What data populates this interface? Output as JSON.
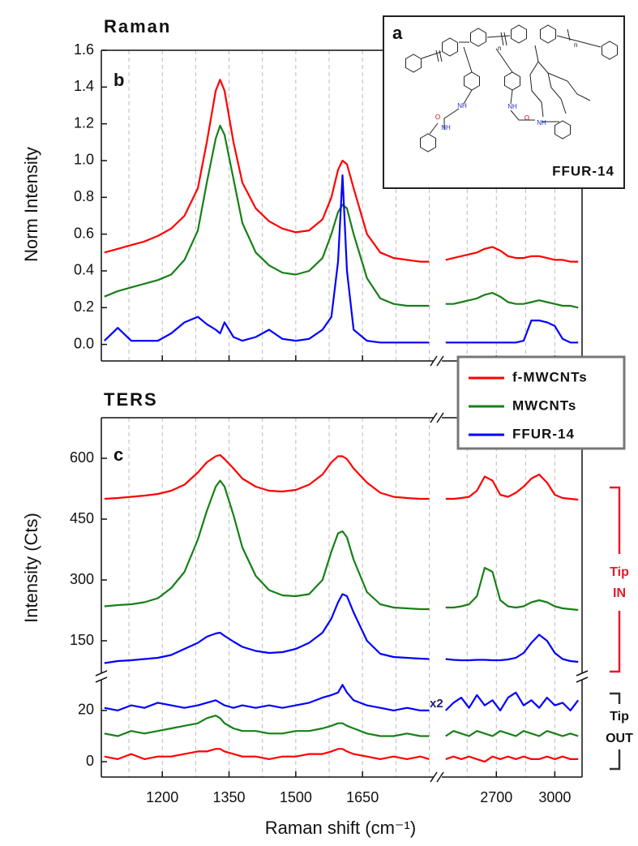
{
  "chart_data": [
    {
      "type": "line",
      "title": "Raman",
      "panel_label": "b",
      "ylabel": "Norm Intensity",
      "x_segments": [
        {
          "xlim": [
            1063,
            1810
          ],
          "xticks": [
            1200,
            1350,
            1500,
            1650
          ],
          "minor_xticks": [
            1125,
            1275,
            1425,
            1575,
            1725,
            1800
          ],
          "x": [
            1070,
            1100,
            1130,
            1160,
            1190,
            1220,
            1250,
            1280,
            1300,
            1320,
            1330,
            1340,
            1360,
            1380,
            1410,
            1440,
            1470,
            1500,
            1530,
            1560,
            1580,
            1595,
            1605,
            1615,
            1630,
            1660,
            1690,
            1720,
            1750,
            1780,
            1800
          ]
        },
        {
          "xlim": [
            2420,
            3140
          ],
          "xticks": [
            2700,
            3000
          ],
          "minor_xticks": [
            2550,
            2850
          ],
          "x": [
            2440,
            2480,
            2520,
            2560,
            2600,
            2640,
            2680,
            2720,
            2760,
            2800,
            2840,
            2880,
            2920,
            2960,
            3000,
            3040,
            3080,
            3120
          ]
        }
      ],
      "y_segments": [
        {
          "ylim": [
            -0.09,
            1.6
          ],
          "yticks": [
            {
              "value": 0,
              "label": "0.0"
            },
            0.2,
            0.4,
            0.6,
            0.8,
            {
              "value": 1,
              "label": "1.0"
            },
            1.2,
            1.4,
            1.6
          ]
        }
      ],
      "series": [
        {
          "color": "#ff0000",
          "values": [
            [
              0.5,
              0.52,
              0.54,
              0.56,
              0.59,
              0.63,
              0.7,
              0.85,
              1.1,
              1.38,
              1.44,
              1.38,
              1.1,
              0.88,
              0.74,
              0.67,
              0.63,
              0.61,
              0.62,
              0.68,
              0.8,
              0.95,
              1.0,
              0.98,
              0.85,
              0.6,
              0.5,
              0.47,
              0.46,
              0.45,
              0.45
            ],
            [
              0.46,
              0.47,
              0.48,
              0.49,
              0.5,
              0.52,
              0.53,
              0.51,
              0.48,
              0.47,
              0.47,
              0.48,
              0.48,
              0.47,
              0.46,
              0.46,
              0.45,
              0.45
            ]
          ]
        },
        {
          "color": "#178017",
          "values": [
            [
              0.26,
              0.29,
              0.31,
              0.33,
              0.35,
              0.38,
              0.46,
              0.62,
              0.88,
              1.12,
              1.19,
              1.14,
              0.9,
              0.66,
              0.5,
              0.43,
              0.39,
              0.38,
              0.4,
              0.47,
              0.6,
              0.72,
              0.76,
              0.74,
              0.6,
              0.36,
              0.25,
              0.22,
              0.21,
              0.21,
              0.21
            ],
            [
              0.22,
              0.22,
              0.23,
              0.24,
              0.25,
              0.27,
              0.28,
              0.26,
              0.23,
              0.22,
              0.22,
              0.23,
              0.24,
              0.23,
              0.22,
              0.21,
              0.21,
              0.2
            ]
          ]
        },
        {
          "color": "#0000ff",
          "values": [
            [
              0.02,
              0.09,
              0.02,
              0.02,
              0.02,
              0.06,
              0.12,
              0.15,
              0.11,
              0.08,
              0.06,
              0.12,
              0.04,
              0.02,
              0.04,
              0.08,
              0.03,
              0.02,
              0.03,
              0.08,
              0.15,
              0.45,
              0.92,
              0.4,
              0.08,
              0.02,
              0.01,
              0.01,
              0.01,
              0.01,
              0.01
            ],
            [
              0.01,
              0.01,
              0.01,
              0.01,
              0.01,
              0.01,
              0.01,
              0.01,
              0.01,
              0.01,
              0.02,
              0.13,
              0.13,
              0.12,
              0.1,
              0.03,
              0.01,
              0.01
            ]
          ]
        }
      ]
    },
    {
      "type": "line",
      "title": "TERS",
      "panel_label": "c",
      "ylabel": "Intensity (Cts)",
      "xlabel": "Raman shift (cm⁻¹)",
      "x_segments": [
        {
          "xlim": [
            1063,
            1810
          ],
          "xticks": [
            1200,
            1350,
            1500,
            1650
          ],
          "minor_xticks": [
            1125,
            1275,
            1425,
            1575,
            1725,
            1800
          ],
          "x": [
            1070,
            1100,
            1130,
            1160,
            1190,
            1220,
            1250,
            1280,
            1300,
            1320,
            1330,
            1340,
            1360,
            1380,
            1410,
            1440,
            1470,
            1500,
            1530,
            1560,
            1580,
            1595,
            1605,
            1615,
            1630,
            1660,
            1690,
            1720,
            1750,
            1780,
            1800
          ]
        },
        {
          "xlim": [
            2420,
            3140
          ],
          "xticks": [
            2700,
            3000
          ],
          "minor_xticks": [
            2550,
            2850
          ],
          "x": [
            2440,
            2480,
            2520,
            2560,
            2600,
            2640,
            2680,
            2720,
            2760,
            2800,
            2840,
            2880,
            2920,
            2960,
            3000,
            3040,
            3080,
            3120
          ]
        }
      ],
      "y_segments": [
        {
          "ylim": [
            70,
            700
          ],
          "yticks": [
            150,
            300,
            450,
            600
          ]
        },
        {
          "ylim": [
            -6,
            32
          ],
          "yticks": [
            0,
            20
          ]
        }
      ],
      "series": [
        {
          "name": "f-MWCNTs",
          "color": "#ff0000",
          "y_segment": 0,
          "values": [
            [
              500,
              502,
              505,
              508,
              512,
              520,
              535,
              565,
              590,
              605,
              608,
              598,
              575,
              550,
              530,
              520,
              518,
              522,
              535,
              560,
              590,
              605,
              605,
              598,
              575,
              540,
              515,
              505,
              502,
              500,
              500
            ],
            [
              500,
              500,
              502,
              505,
              520,
              555,
              545,
              510,
              505,
              515,
              530,
              550,
              560,
              540,
              510,
              502,
              500,
              498
            ]
          ]
        },
        {
          "name": "MWCNTs",
          "color": "#178017",
          "y_segment": 0,
          "values": [
            [
              235,
              238,
              240,
              245,
              255,
              280,
              320,
              400,
              470,
              530,
              545,
              530,
              460,
              380,
              310,
              275,
              262,
              260,
              265,
              300,
              370,
              415,
              420,
              405,
              350,
              270,
              240,
              232,
              230,
              228,
              228
            ],
            [
              232,
              232,
              235,
              240,
              260,
              330,
              320,
              250,
              235,
              232,
              235,
              245,
              250,
              245,
              235,
              230,
              228,
              226
            ]
          ]
        },
        {
          "name": "FFUR-14",
          "color": "#0000ff",
          "y_segment": 0,
          "values": [
            [
              95,
              100,
              102,
              105,
              108,
              115,
              130,
              145,
              160,
              168,
              170,
              162,
              148,
              135,
              125,
              120,
              122,
              130,
              145,
              170,
              205,
              245,
              265,
              260,
              220,
              150,
              118,
              110,
              108,
              106,
              105
            ],
            [
              105,
              103,
              102,
              102,
              103,
              103,
              102,
              102,
              104,
              108,
              120,
              145,
              165,
              150,
              120,
              105,
              100,
              98
            ]
          ]
        },
        {
          "color": "#ff0000",
          "y_segment": 1,
          "values": [
            [
              2,
              1,
              3,
              1,
              2,
              2,
              3,
              4,
              4,
              5,
              5,
              4,
              3,
              2,
              2,
              1,
              2,
              2,
              3,
              3,
              4,
              5,
              5,
              4,
              3,
              2,
              1,
              2,
              1,
              2,
              1
            ],
            [
              1,
              2,
              1,
              2,
              1,
              0,
              2,
              1,
              2,
              1,
              2,
              1,
              1,
              2,
              1,
              2,
              1,
              1
            ]
          ]
        },
        {
          "color": "#178017",
          "y_segment": 1,
          "values": [
            [
              11,
              10,
              12,
              11,
              12,
              13,
              14,
              15,
              17,
              18,
              17,
              15,
              13,
              12,
              12,
              11,
              11,
              12,
              12,
              13,
              14,
              15,
              15,
              14,
              13,
              11,
              10,
              10,
              11,
              10,
              10
            ],
            [
              10,
              12,
              11,
              10,
              12,
              11,
              10,
              12,
              11,
              10,
              12,
              11,
              10,
              12,
              11,
              10,
              11,
              10
            ]
          ]
        },
        {
          "color": "#0000ff",
          "y_segment": 1,
          "values": [
            [
              21,
              20,
              22,
              21,
              23,
              22,
              21,
              22,
              23,
              24,
              23,
              22,
              21,
              22,
              21,
              22,
              21,
              22,
              23,
              25,
              26,
              27,
              30,
              27,
              24,
              22,
              21,
              20,
              21,
              20,
              20
            ],
            [
              20,
              23,
              25,
              21,
              26,
              22,
              24,
              20,
              25,
              27,
              22,
              24,
              21,
              25,
              22,
              23,
              20,
              24
            ]
          ]
        }
      ],
      "multiplier_label": "x2",
      "tip_in_label": [
        "Tip",
        "IN"
      ],
      "tip_out_label": [
        "Tip",
        "OUT"
      ]
    }
  ],
  "inset": {
    "label": "a",
    "name": "FFUR-14",
    "repeat": [
      "n",
      "n"
    ],
    "atoms": [
      "NH",
      "O",
      "NH",
      "NH",
      "O",
      "NH"
    ]
  }
}
